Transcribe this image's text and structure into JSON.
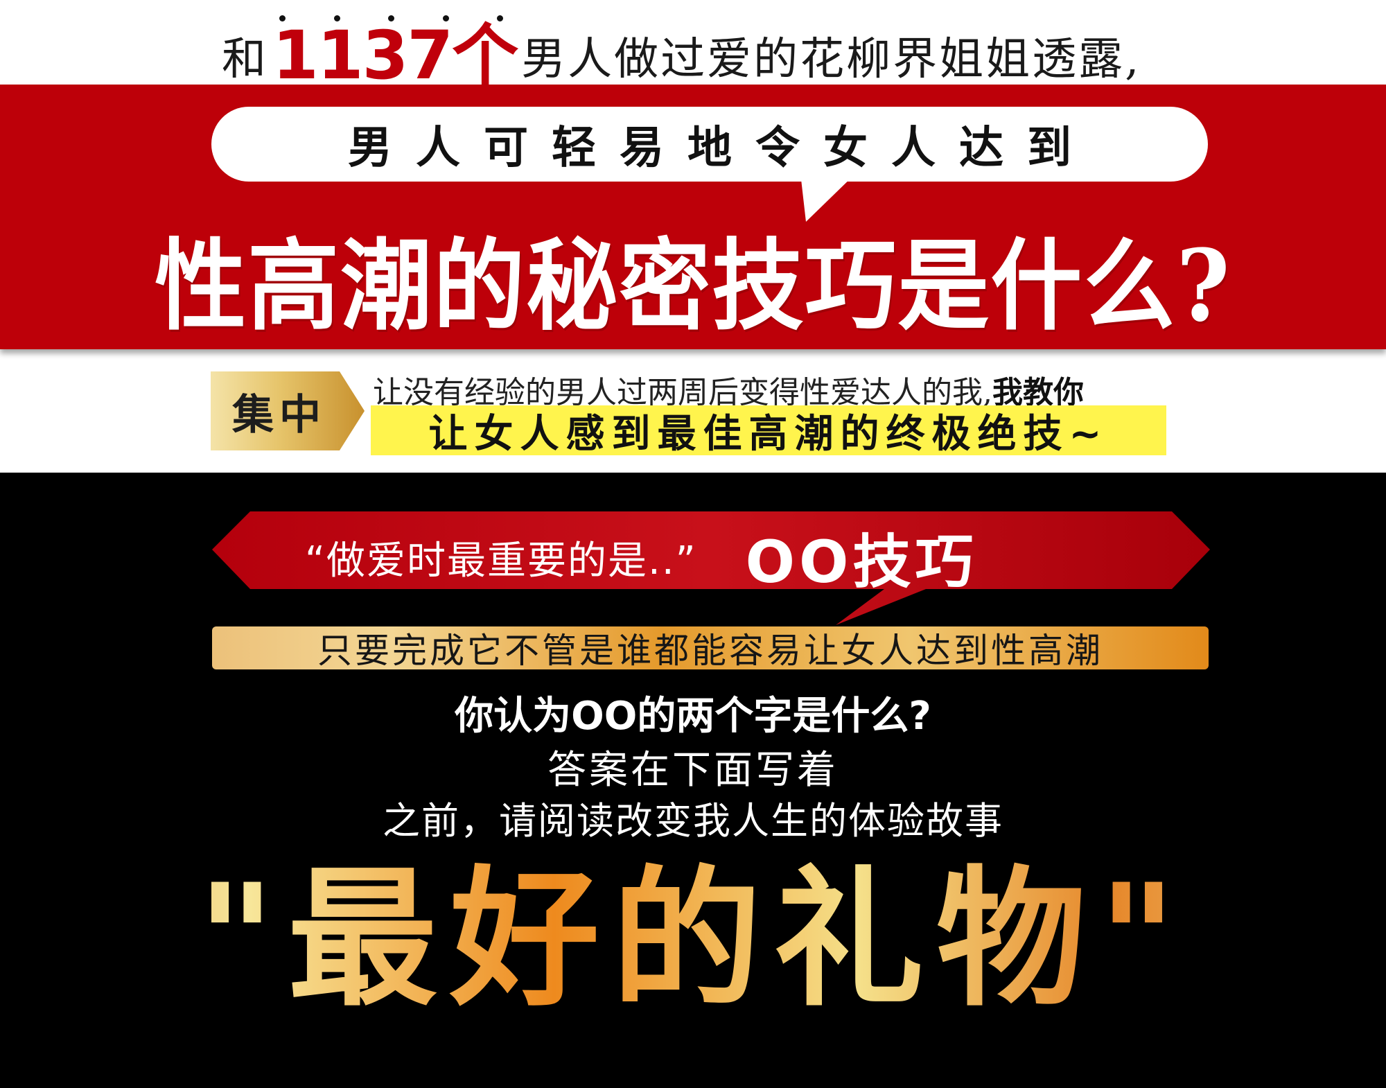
{
  "intro": {
    "prefix": "和",
    "number": "1137个",
    "suffix": "男人做过爱的花柳界姐姐透露,"
  },
  "banner": {
    "bubble_text": "男人可轻易地令女人达到",
    "question": "性高潮的秘密技巧是什么?"
  },
  "focus": {
    "badge_label": "集中",
    "line1_normal": "让没有经验的男人过两周后变得性爱达人的我,",
    "line1_bold": "我教你",
    "highlight": "让女人感到最佳高潮的终极绝技~"
  },
  "secret": {
    "quote": "“做爱时最重要的是..”",
    "technique": "OO技巧",
    "gold_bar": "只要完成它不管是谁都能容易让女人达到性高潮",
    "guess_question": "你认为OO的两个字是什么?",
    "answer_line": "答案在下面写着",
    "before_line": "之前，请阅读改变我人生的体验故事",
    "gift_title": "\"最好的礼物\""
  },
  "colors": {
    "banner_red": "#bd0009",
    "number_red": "#c0000b",
    "highlight_yellow": "#fff44d",
    "gold": "#e59a2c",
    "panel_black": "#000000"
  }
}
